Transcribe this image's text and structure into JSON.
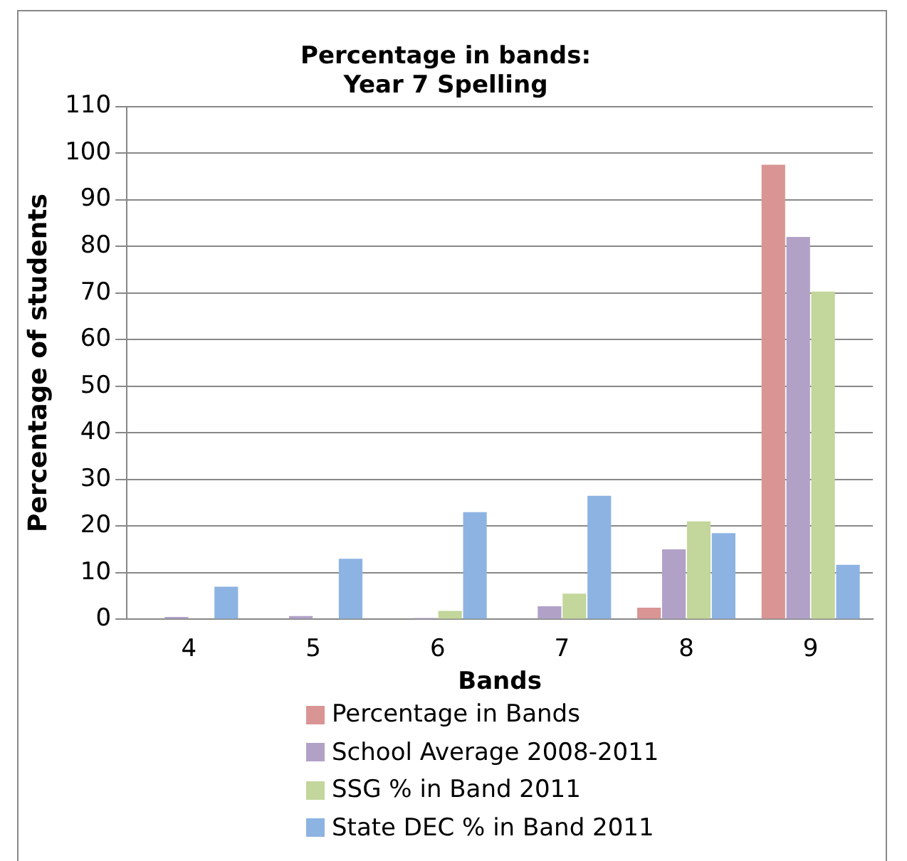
{
  "chart_data": {
    "type": "bar",
    "title": "Percentage in bands:\nYear 7 Spelling",
    "xlabel": "Bands",
    "ylabel": "Percentage of students",
    "categories": [
      "4",
      "5",
      "6",
      "7",
      "8",
      "9"
    ],
    "series": [
      {
        "name": "Percentage in Bands",
        "color": "#d99594",
        "values": [
          0,
          0,
          0,
          0,
          2.5,
          97.5
        ]
      },
      {
        "name": "School Average 2008-2011",
        "color": "#b2a1c7",
        "values": [
          0.5,
          0.7,
          0.3,
          2.8,
          15,
          82
        ]
      },
      {
        "name": "SSG % in Band 2011",
        "color": "#c3d69b",
        "values": [
          0,
          0,
          1.8,
          5.5,
          21,
          70.3
        ]
      },
      {
        "name": "State DEC % in Band 2011",
        "color": "#8db3e2",
        "values": [
          7,
          13,
          23,
          26.5,
          18.5,
          11.7
        ]
      }
    ],
    "ylim": [
      0,
      110
    ],
    "yticks": [
      0,
      10,
      20,
      30,
      40,
      50,
      60,
      70,
      80,
      90,
      100,
      110
    ],
    "grid": "y",
    "legend": "bottom"
  }
}
